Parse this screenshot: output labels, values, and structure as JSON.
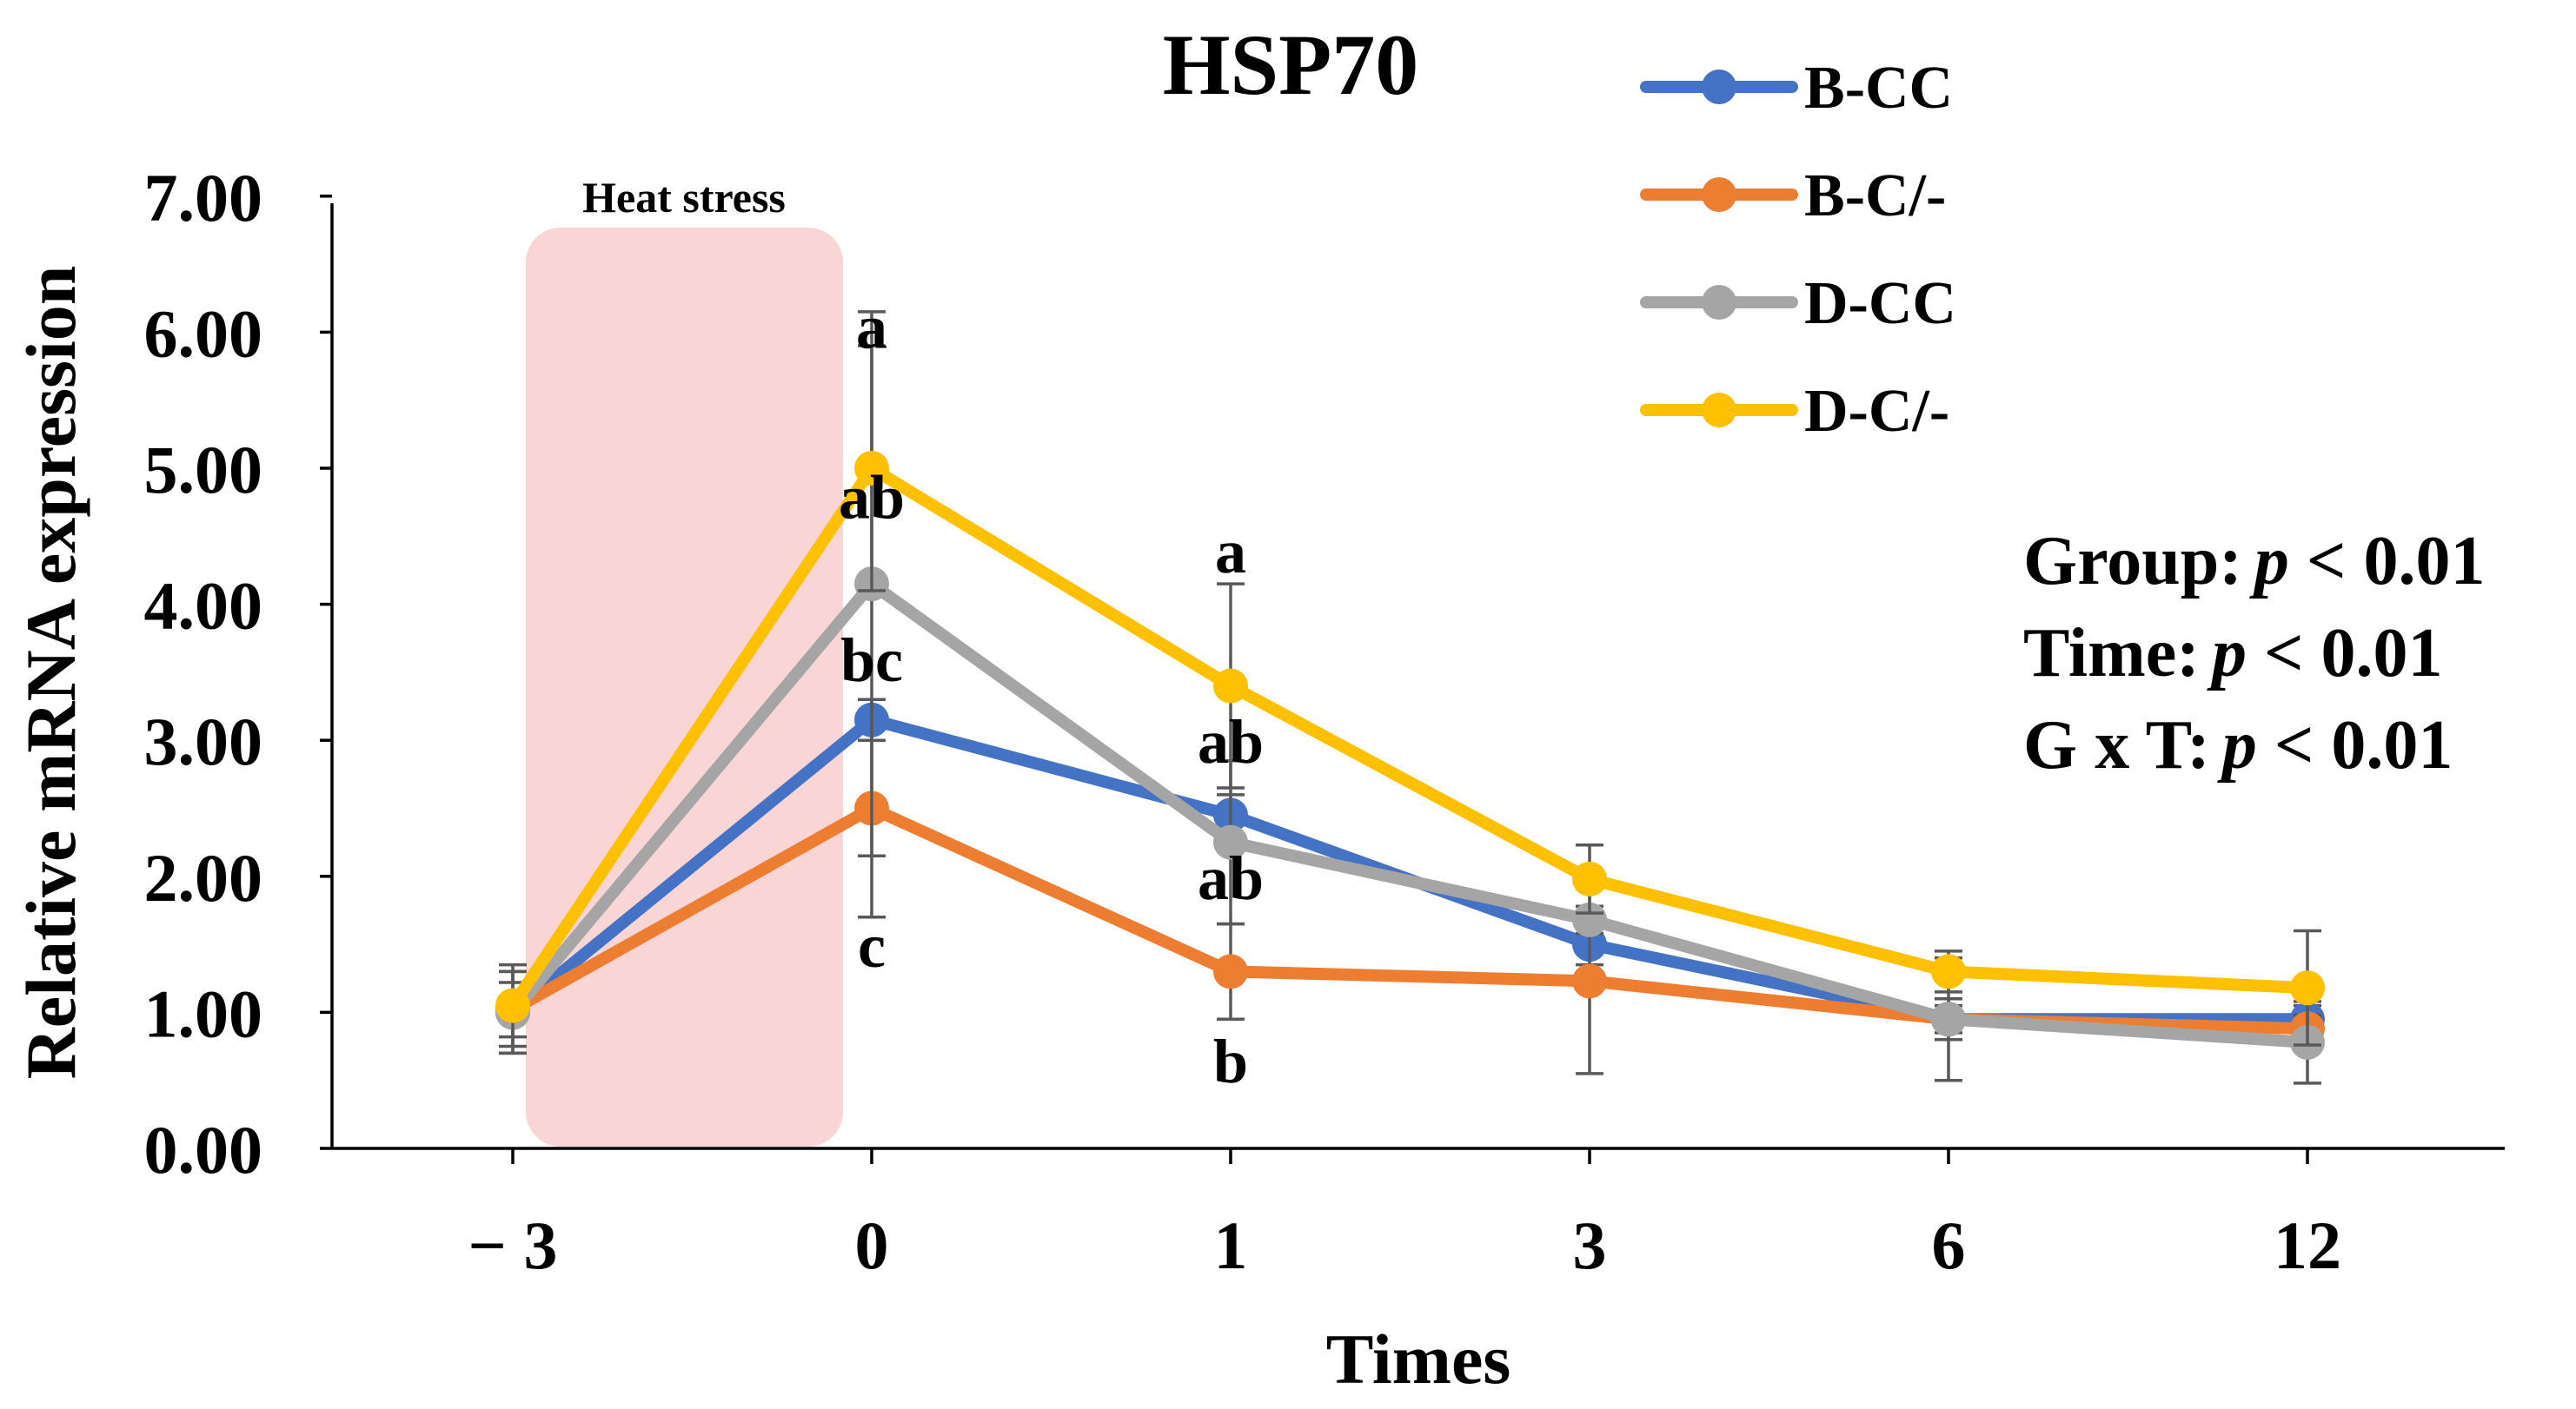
{
  "chart_data": {
    "type": "line",
    "title": "HSP70",
    "xlabel": "Times",
    "ylabel": "Relative mRNA expression",
    "categories": [
      "− 3",
      "0",
      "1",
      "3",
      "6",
      "12"
    ],
    "ylim": [
      0,
      7
    ],
    "yticks": [
      "0.00",
      "1.00",
      "2.00",
      "3.00",
      "4.00",
      "5.00",
      "6.00",
      "7.00"
    ],
    "legend_position": "top-right",
    "series": [
      {
        "name": "B-CC",
        "color": "#4472C4",
        "values": [
          1.0,
          3.15,
          2.45,
          1.5,
          0.95,
          0.95
        ],
        "errors": [
          0.3,
          0.15,
          0.15,
          0.15,
          0.1,
          0.1
        ]
      },
      {
        "name": "B-C/-",
        "color": "#ED7D31",
        "values": [
          1.02,
          2.5,
          1.3,
          1.23,
          0.95,
          0.88
        ],
        "errors": [
          0.2,
          0.8,
          0.35,
          0.68,
          0.15,
          0.1
        ]
      },
      {
        "name": "D-CC",
        "color": "#A5A5A5",
        "values": [
          1.0,
          4.15,
          2.25,
          1.68,
          0.95,
          0.78
        ],
        "errors": [
          0.3,
          2.0,
          0.6,
          0.1,
          0.45,
          0.3
        ]
      },
      {
        "name": "D-C/-",
        "color": "#FFC000",
        "values": [
          1.05,
          5.0,
          3.4,
          1.98,
          1.3,
          1.18
        ],
        "errors": [
          0.3,
          0.9,
          0.75,
          0.25,
          0.15,
          0.42
        ]
      }
    ],
    "annotations": {
      "region_label": "Heat stress",
      "sig_letters": [
        {
          "x": "0",
          "y": 6.05,
          "text": "a"
        },
        {
          "x": "0",
          "y": 4.8,
          "text": "ab"
        },
        {
          "x": "0",
          "y": 3.6,
          "text": "bc"
        },
        {
          "x": "0",
          "y": 1.5,
          "text": "c"
        },
        {
          "x": "1",
          "y": 4.4,
          "text": "a"
        },
        {
          "x": "1",
          "y": 3.0,
          "text": "ab"
        },
        {
          "x": "1",
          "y": 2.0,
          "text": "ab"
        },
        {
          "x": "1",
          "y": 0.65,
          "text": "b"
        }
      ],
      "stats": [
        {
          "label": "Group:",
          "p": "p",
          "rest": " < 0.01"
        },
        {
          "label": "Time:",
          "p": "p",
          "rest": " < 0.01"
        },
        {
          "label": "G x T:",
          "p": "p",
          "rest": " < 0.01"
        }
      ]
    }
  }
}
